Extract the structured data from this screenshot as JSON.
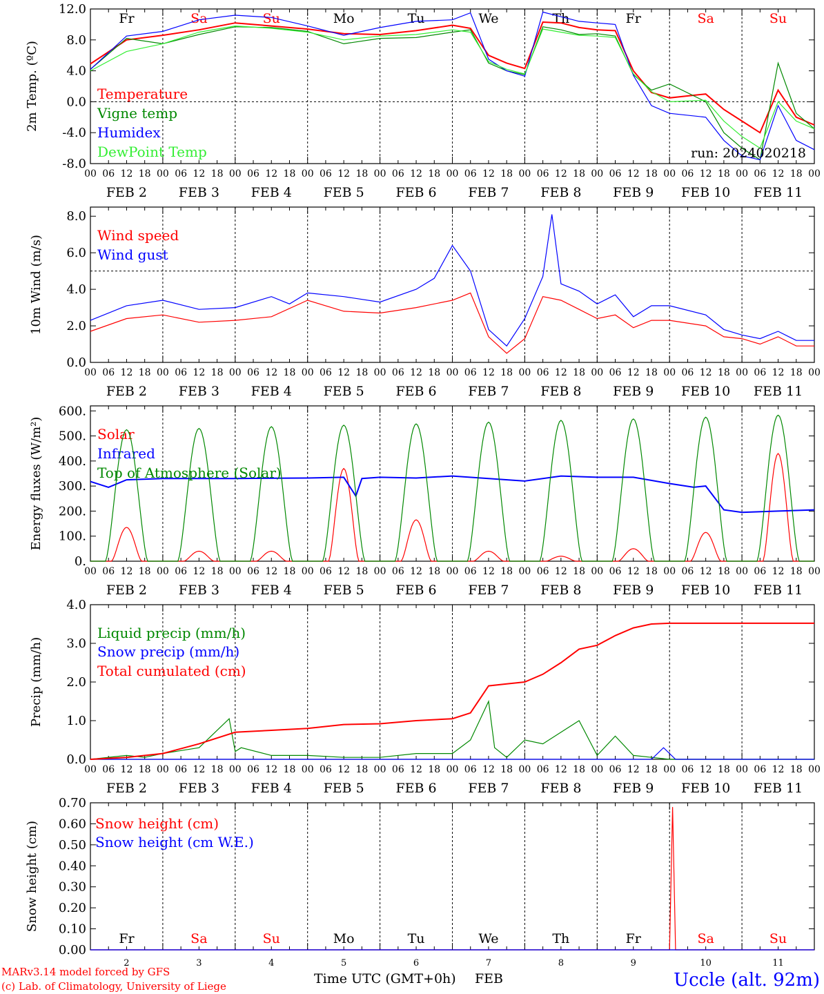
{
  "run_label": "run: 2024020218",
  "station": "Uccle (alt. 92m)",
  "credits": [
    "MARv3.14 model forced by GFS",
    "(c) Lab. of Climatology, University of Liege"
  ],
  "xlabel_time": "Time UTC (GMT+0h)",
  "xlabel_month": "FEB",
  "hour_ticks": [
    "00",
    "06",
    "12",
    "18"
  ],
  "date_labels": [
    "FEB  2",
    "FEB  3",
    "FEB  4",
    "FEB  5",
    "FEB  6",
    "FEB  7",
    "FEB  8",
    "FEB  9",
    "FEB 10",
    "FEB 11"
  ],
  "day_names": [
    "Fr",
    "Sa",
    "Su",
    "Mo",
    "Tu",
    "We",
    "Th",
    "Fr",
    "Sa",
    "Su"
  ],
  "weekend_color": "#ff0000",
  "weekday_color": "#000000",
  "bottom_day_numbers": [
    "2",
    "3",
    "4",
    "5",
    "6",
    "7",
    "8",
    "9",
    "10",
    "11"
  ],
  "chart_data": [
    {
      "type": "line",
      "ylabel": "2m Temp. (ºC)",
      "ylim": [
        -8,
        12
      ],
      "yticks": [
        "-8.0",
        "-4.0",
        "0.0",
        "4.0",
        "8.0",
        "12.0"
      ],
      "ytick_values": [
        -8,
        -4,
        0,
        4,
        8,
        12
      ],
      "hline": 0,
      "x_unit": "hours since FEB 2 00 UTC",
      "legend": [
        "Temperature",
        "Vigne temp",
        "Humidex",
        "DewPoint Temp"
      ],
      "series": [
        {
          "name": "Temperature",
          "color": "#ff0000",
          "x": [
            0,
            12,
            24,
            36,
            48,
            60,
            72,
            84,
            96,
            108,
            120,
            126,
            132,
            138,
            144,
            150,
            156,
            162,
            168,
            174,
            180,
            186,
            192,
            204,
            210,
            216,
            222,
            228,
            234,
            240
          ],
          "values": [
            4.9,
            8.0,
            8.6,
            9.3,
            10.2,
            9.8,
            9.4,
            8.8,
            8.7,
            9.2,
            9.9,
            9.5,
            6.0,
            5.0,
            4.3,
            10.3,
            10.2,
            9.6,
            9.3,
            9.2,
            4.0,
            1.2,
            0.5,
            1.0,
            -1.0,
            -2.5,
            -4.0,
            1.5,
            -2.0,
            -3.0
          ]
        },
        {
          "name": "Vigne temp",
          "color": "#008800",
          "x": [
            0,
            12,
            24,
            36,
            48,
            60,
            72,
            84,
            96,
            108,
            120,
            126,
            132,
            138,
            144,
            150,
            156,
            162,
            168,
            174,
            180,
            186,
            192,
            204,
            210,
            216,
            222,
            228,
            234,
            240
          ],
          "values": [
            4.2,
            8.2,
            7.5,
            8.7,
            9.7,
            9.6,
            9.1,
            7.5,
            8.2,
            8.3,
            9.0,
            9.3,
            5.0,
            4.0,
            3.5,
            9.7,
            9.3,
            8.7,
            8.8,
            8.5,
            3.5,
            1.5,
            2.3,
            0.0,
            -4.0,
            -6.0,
            -7.5,
            5.0,
            -1.5,
            -3.5
          ]
        },
        {
          "name": "Humidex",
          "color": "#0000ff",
          "x": [
            0,
            12,
            24,
            36,
            48,
            60,
            72,
            84,
            96,
            108,
            120,
            126,
            132,
            138,
            144,
            150,
            156,
            162,
            168,
            174,
            180,
            186,
            192,
            204,
            210,
            216,
            222,
            228,
            234,
            240
          ],
          "values": [
            4.2,
            8.5,
            9.1,
            10.6,
            11.2,
            10.9,
            9.8,
            8.6,
            9.6,
            10.4,
            10.6,
            11.5,
            5.5,
            4.0,
            3.3,
            11.6,
            11.0,
            10.4,
            10.2,
            10.0,
            3.4,
            -0.5,
            -1.5,
            -2.0,
            -5.0,
            -7.0,
            -7.5,
            -0.5,
            -5.0,
            -6.2
          ]
        },
        {
          "name": "DewPoint Temp",
          "color": "#33ee33",
          "x": [
            0,
            12,
            24,
            36,
            48,
            60,
            72,
            84,
            96,
            108,
            120,
            126,
            132,
            138,
            144,
            150,
            156,
            162,
            168,
            174,
            180,
            186,
            192,
            204,
            210,
            216,
            222,
            228,
            234,
            240
          ],
          "values": [
            4.0,
            6.5,
            7.5,
            9.0,
            9.8,
            9.5,
            9.0,
            8.0,
            8.5,
            8.7,
            9.3,
            9.0,
            5.2,
            4.2,
            3.6,
            9.4,
            9.0,
            8.6,
            8.5,
            8.3,
            3.6,
            1.3,
            0.0,
            0.2,
            -2.5,
            -4.5,
            -6.0,
            0.0,
            -2.5,
            -3.5
          ]
        }
      ]
    },
    {
      "type": "line",
      "ylabel": "10m Wind (m/s)",
      "ylim": [
        0,
        8.5
      ],
      "yticks": [
        "0.0",
        "2.0",
        "4.0",
        "6.0",
        "8.0"
      ],
      "ytick_values": [
        0,
        2,
        4,
        6,
        8
      ],
      "hline": 5,
      "legend": [
        "Wind speed",
        "Wind gust"
      ],
      "series": [
        {
          "name": "Wind speed",
          "color": "#ff0000",
          "x": [
            0,
            12,
            24,
            36,
            48,
            60,
            72,
            84,
            96,
            108,
            120,
            126,
            132,
            138,
            144,
            150,
            156,
            162,
            168,
            174,
            180,
            186,
            192,
            204,
            210,
            216,
            222,
            228,
            234,
            240
          ],
          "values": [
            1.7,
            2.4,
            2.6,
            2.2,
            2.3,
            2.5,
            3.4,
            2.8,
            2.7,
            3.0,
            3.4,
            3.8,
            1.4,
            0.5,
            1.3,
            3.6,
            3.4,
            2.9,
            2.4,
            2.6,
            1.9,
            2.3,
            2.3,
            2.0,
            1.4,
            1.3,
            1.0,
            1.4,
            0.9,
            0.9
          ]
        },
        {
          "name": "Wind gust",
          "color": "#0000ff",
          "x": [
            0,
            12,
            24,
            36,
            48,
            60,
            66,
            72,
            84,
            96,
            108,
            114,
            120,
            126,
            132,
            138,
            144,
            150,
            153,
            156,
            162,
            168,
            174,
            180,
            186,
            192,
            204,
            210,
            216,
            222,
            228,
            234,
            240
          ],
          "values": [
            2.3,
            3.1,
            3.4,
            2.9,
            3.0,
            3.6,
            3.2,
            3.8,
            3.6,
            3.3,
            4.0,
            4.6,
            6.4,
            5.0,
            1.8,
            0.9,
            2.4,
            4.7,
            8.1,
            4.3,
            3.9,
            3.2,
            3.7,
            2.5,
            3.1,
            3.1,
            2.6,
            1.8,
            1.5,
            1.3,
            1.7,
            1.2,
            1.2
          ]
        }
      ]
    },
    {
      "type": "line",
      "ylabel": "Energy fluxes (W/m²)",
      "ylim": [
        0,
        620
      ],
      "yticks": [
        "0.",
        "100.",
        "200.",
        "300.",
        "400.",
        "500.",
        "600."
      ],
      "ytick_values": [
        0,
        100,
        200,
        300,
        400,
        500,
        600
      ],
      "legend": [
        "Solar",
        "Infrared",
        "Top of Atmosphere (Solar)"
      ],
      "series": [
        {
          "name": "Solar",
          "color": "#ff0000",
          "daily_peak_at_hour": 12,
          "peaks": [
            135,
            40,
            40,
            370,
            165,
            40,
            20,
            50,
            115,
            430
          ]
        },
        {
          "name": "Infrared",
          "color": "#0000ff",
          "x": [
            0,
            6,
            12,
            24,
            48,
            72,
            84,
            88,
            90,
            96,
            108,
            120,
            144,
            156,
            168,
            180,
            192,
            200,
            204,
            210,
            216,
            228,
            240
          ],
          "values": [
            318,
            295,
            325,
            330,
            330,
            332,
            335,
            260,
            330,
            335,
            332,
            340,
            320,
            340,
            335,
            335,
            310,
            295,
            300,
            205,
            195,
            200,
            205
          ]
        },
        {
          "name": "Top of Atmosphere (Solar)",
          "color": "#008800",
          "daily_peak_at_hour": 12,
          "peaks": [
            525,
            530,
            537,
            543,
            548,
            555,
            562,
            568,
            575,
            583
          ]
        }
      ]
    },
    {
      "type": "line",
      "ylabel": "Precip (mm/h)",
      "ylim": [
        0,
        4.0
      ],
      "yticks": [
        "0.0",
        "1.0",
        "2.0",
        "3.0",
        "4.0"
      ],
      "ytick_values": [
        0,
        1,
        2,
        3,
        4
      ],
      "legend": [
        "Liquid precip (mm/h)",
        "Snow precip (mm/h)",
        "Total cumulated (cm)"
      ],
      "series": [
        {
          "name": "Liquid precip (mm/h)",
          "color": "#008800",
          "x": [
            0,
            12,
            18,
            24,
            36,
            46,
            48,
            50,
            60,
            72,
            84,
            96,
            108,
            120,
            126,
            132,
            134,
            138,
            144,
            150,
            156,
            162,
            168,
            174,
            180,
            186,
            192,
            204,
            216,
            228,
            240
          ],
          "values": [
            0.0,
            0.1,
            0.05,
            0.15,
            0.3,
            1.05,
            0.2,
            0.3,
            0.1,
            0.1,
            0.05,
            0.05,
            0.15,
            0.15,
            0.5,
            1.5,
            0.3,
            0.05,
            0.5,
            0.4,
            0.7,
            1.0,
            0.1,
            0.6,
            0.1,
            0.05,
            0.0,
            0.0,
            0.0,
            0.0,
            0.0
          ]
        },
        {
          "name": "Snow precip (mm/h)",
          "color": "#0000ff",
          "x": [
            0,
            186,
            190,
            194,
            240
          ],
          "values": [
            0,
            0,
            0.3,
            0,
            0
          ]
        },
        {
          "name": "Total cumulated (cm)",
          "color": "#ff0000",
          "x": [
            0,
            12,
            24,
            36,
            48,
            60,
            72,
            84,
            96,
            108,
            120,
            126,
            132,
            138,
            144,
            150,
            156,
            162,
            168,
            174,
            180,
            186,
            192,
            204,
            216,
            228,
            240
          ],
          "values": [
            0.0,
            0.05,
            0.15,
            0.4,
            0.7,
            0.75,
            0.8,
            0.9,
            0.92,
            1.0,
            1.05,
            1.2,
            1.9,
            1.95,
            2.0,
            2.2,
            2.5,
            2.85,
            2.95,
            3.2,
            3.4,
            3.5,
            3.52,
            3.52,
            3.52,
            3.52,
            3.52
          ]
        }
      ]
    },
    {
      "type": "line",
      "ylabel": "Snow height (cm)",
      "ylim": [
        0,
        0.7
      ],
      "yticks": [
        "0.00",
        "0.10",
        "0.20",
        "0.30",
        "0.40",
        "0.50",
        "0.60",
        "0.70"
      ],
      "ytick_values": [
        0,
        0.1,
        0.2,
        0.3,
        0.4,
        0.5,
        0.6,
        0.7
      ],
      "legend": [
        "Snow height (cm)",
        "Snow height (cm W.E.)"
      ],
      "series": [
        {
          "name": "Snow height (cm)",
          "color": "#ff0000",
          "x": [
            0,
            192,
            193,
            194,
            240
          ],
          "values": [
            0,
            0,
            0.68,
            0,
            0
          ]
        },
        {
          "name": "Snow height (cm W.E.)",
          "color": "#0000ff",
          "x": [
            0,
            240
          ],
          "values": [
            0,
            0
          ]
        }
      ]
    }
  ]
}
